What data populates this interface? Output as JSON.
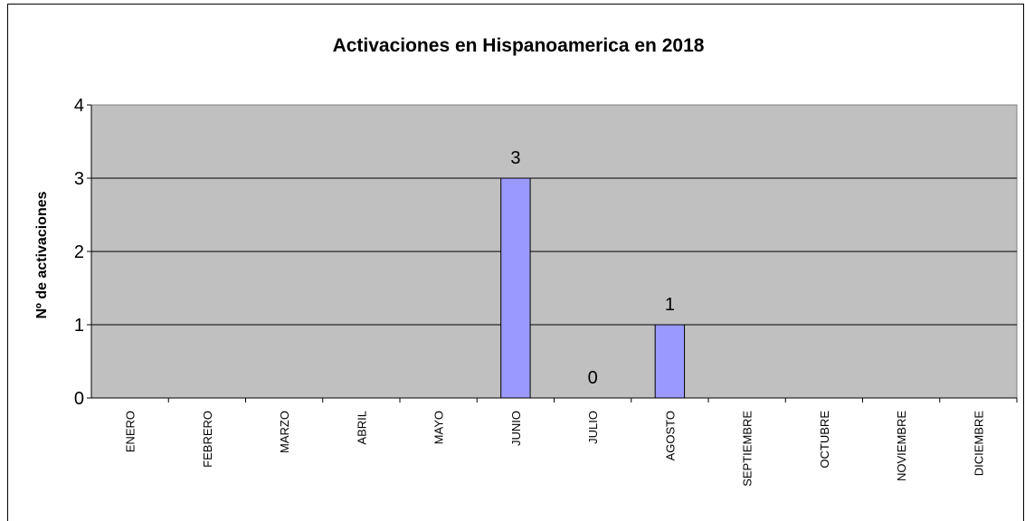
{
  "chart_data": {
    "type": "bar",
    "title": "Activaciones en Hispanoamerica en 2018",
    "xlabel": "",
    "ylabel": "Nº de activaciones",
    "categories": [
      "ENERO",
      "FEBRERO",
      "MARZO",
      "ABRIL",
      "MAYO",
      "JUNIO",
      "JULIO",
      "AGOSTO",
      "SEPTIEMBRE",
      "OCTUBRE",
      "NOVIEMBRE",
      "DICIEMBRE"
    ],
    "values": [
      null,
      null,
      null,
      null,
      null,
      3,
      0,
      1,
      null,
      null,
      null,
      null
    ],
    "data_labels": [
      null,
      null,
      null,
      null,
      null,
      "3",
      "0",
      "1",
      null,
      null,
      null,
      null
    ],
    "ylim": [
      0,
      4
    ],
    "yticks": [
      "0",
      "1",
      "2",
      "3",
      "4"
    ],
    "grid": true,
    "legend": "none",
    "colors": {
      "plot_background": "#c0c0c0",
      "bar_fill": "#9999ff",
      "bar_stroke": "#000000",
      "gridline": "#000000"
    }
  }
}
